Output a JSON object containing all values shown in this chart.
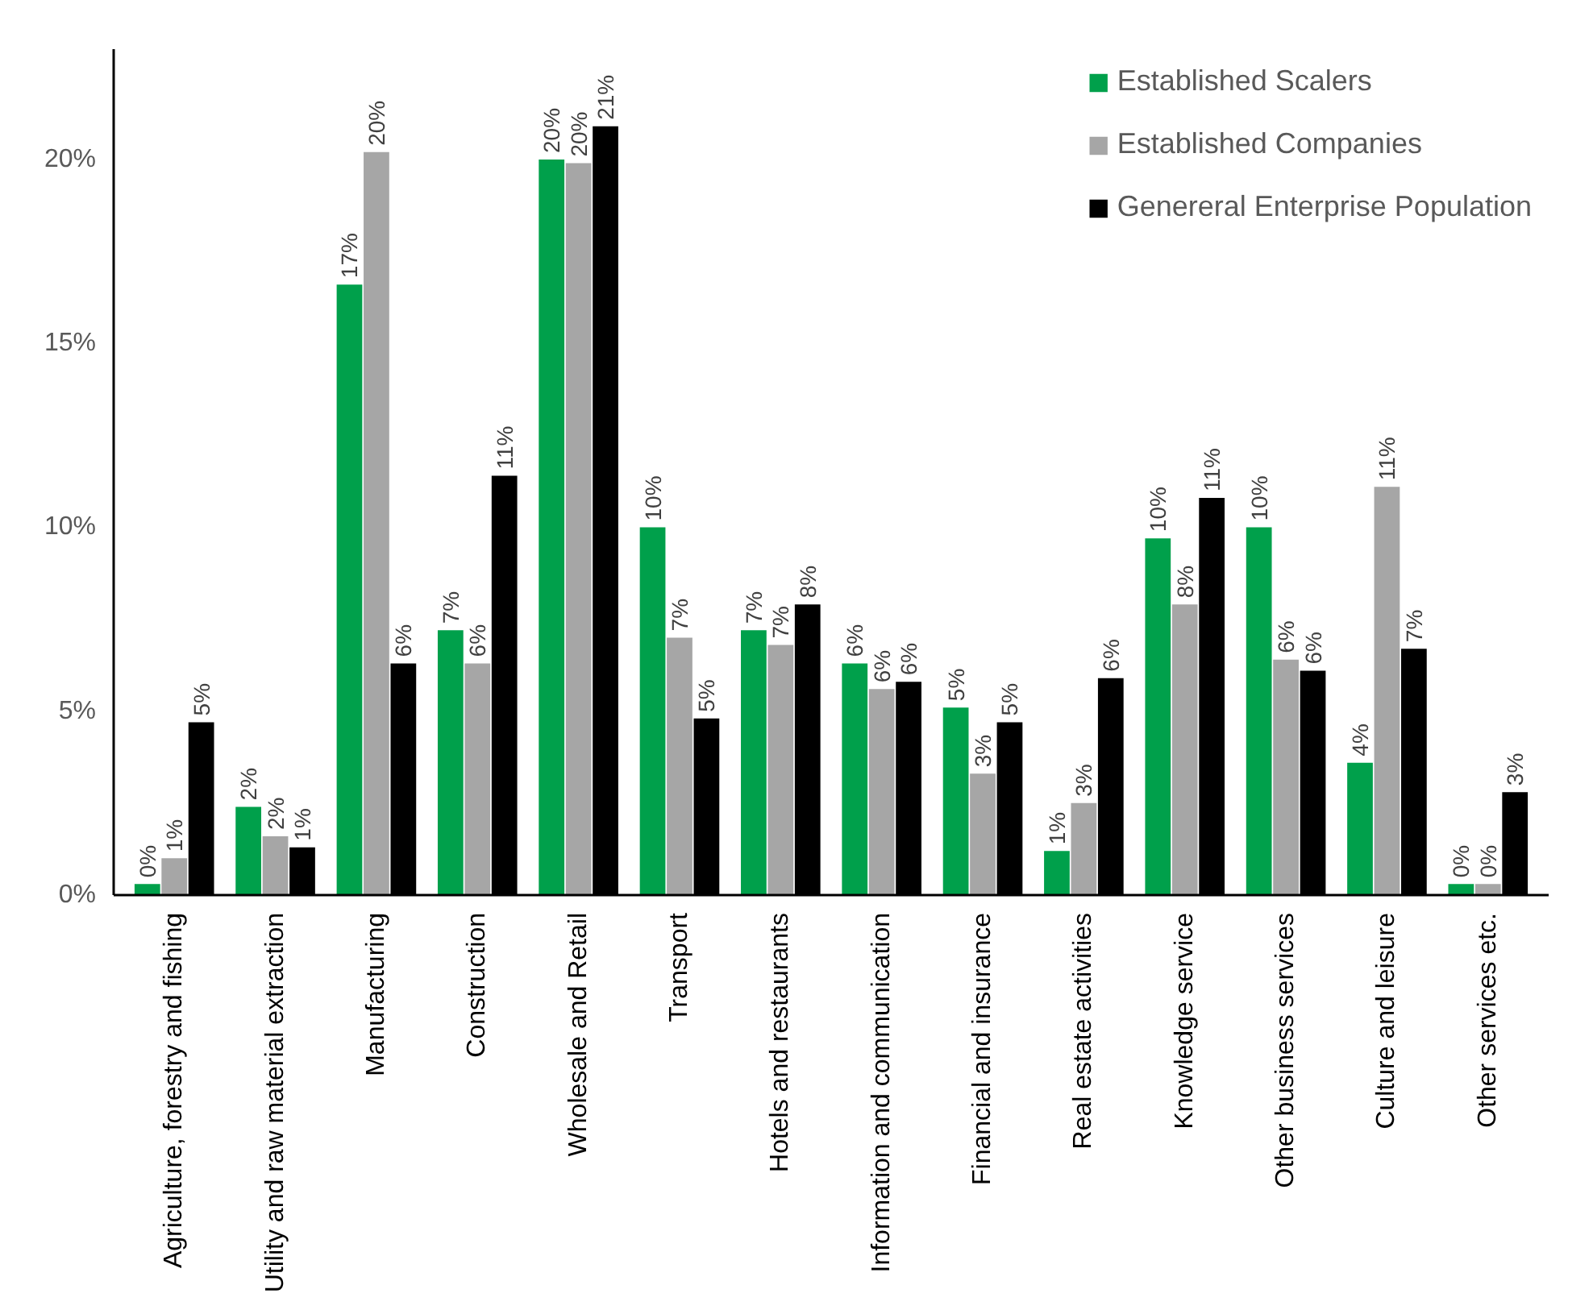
{
  "chart_data": {
    "type": "bar",
    "categories": [
      "Agriculture, forestry and fishing",
      "Utility and raw material extraction",
      "Manufacturing",
      "Construction",
      "Wholesale and Retail",
      "Transport",
      "Hotels and restaurants",
      "Information and communication",
      "Financial and insurance",
      "Real estate activities",
      "Knowledge service",
      "Other business services",
      "Culture and leisure",
      "Other services etc."
    ],
    "series": [
      {
        "name": "Established Scalers",
        "color": "#00a04b",
        "values": [
          0.3,
          2.4,
          16.6,
          7.2,
          20.0,
          10.0,
          7.2,
          6.3,
          5.1,
          1.2,
          9.7,
          10.0,
          3.6,
          0.3
        ],
        "value_labels": [
          "0%",
          "2%",
          "17%",
          "7%",
          "20%",
          "10%",
          "7%",
          "6%",
          "5%",
          "1%",
          "10%",
          "10%",
          "4%",
          "0%"
        ]
      },
      {
        "name": "Established Companies",
        "color": "#a6a6a6",
        "values": [
          1.0,
          1.6,
          20.2,
          6.3,
          19.9,
          7.0,
          6.8,
          5.6,
          3.3,
          2.5,
          7.9,
          6.4,
          11.1,
          0.3
        ],
        "value_labels": [
          "1%",
          "2%",
          "20%",
          "6%",
          "20%",
          "7%",
          "7%",
          "6%",
          "3%",
          "3%",
          "8%",
          "6%",
          "11%",
          "0%"
        ]
      },
      {
        "name": "Genereral Enterprise Population",
        "color": "#000000",
        "values": [
          4.7,
          1.3,
          6.3,
          11.4,
          20.9,
          4.8,
          7.9,
          5.8,
          4.7,
          5.9,
          10.8,
          6.1,
          6.7,
          2.8
        ],
        "value_labels": [
          "5%",
          "1%",
          "6%",
          "11%",
          "21%",
          "5%",
          "8%",
          "6%",
          "5%",
          "6%",
          "11%",
          "6%",
          "7%",
          "3%"
        ]
      }
    ],
    "ylim": [
      0,
      23
    ],
    "yticks": [
      {
        "value": 0,
        "label": "0%"
      },
      {
        "value": 5,
        "label": "5%"
      },
      {
        "value": 10,
        "label": "10%"
      },
      {
        "value": 15,
        "label": "15%"
      },
      {
        "value": 20,
        "label": "20%"
      }
    ],
    "grid": false,
    "legend": "top right"
  }
}
